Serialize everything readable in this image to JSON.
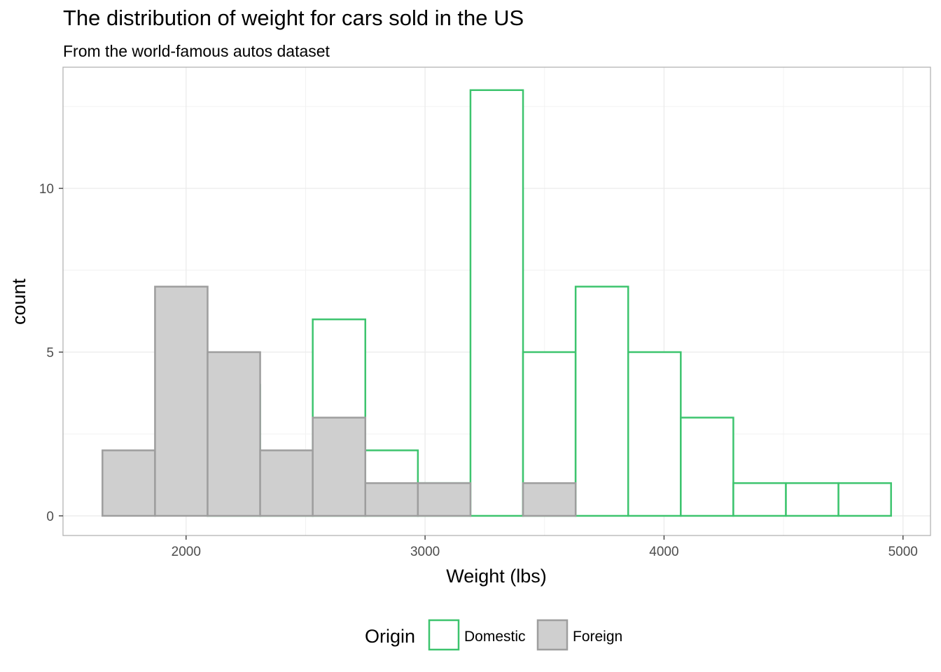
{
  "title": "The distribution of weight for cars sold in the US",
  "subtitle": "From the world-famous autos dataset",
  "chart_data": {
    "type": "bar",
    "subtype": "overlaid-histogram",
    "xlabel": "Weight (lbs)",
    "ylabel": "count",
    "xlim": [
      1485,
      5115
    ],
    "ylim": [
      -0.6,
      13.7
    ],
    "x_ticks": [
      2000,
      3000,
      4000,
      5000
    ],
    "y_ticks": [
      0,
      5,
      10
    ],
    "x_minor_ticks": [
      2500,
      3500,
      4500
    ],
    "y_minor_ticks": [
      2.5,
      7.5,
      12.5
    ],
    "grid": true,
    "legend": {
      "title": "Origin",
      "position": "bottom"
    },
    "bin_width": 220,
    "bins": [
      {
        "x0": 1650,
        "x1": 1870
      },
      {
        "x0": 1870,
        "x1": 2090
      },
      {
        "x0": 2090,
        "x1": 2310
      },
      {
        "x0": 2310,
        "x1": 2530
      },
      {
        "x0": 2530,
        "x1": 2750
      },
      {
        "x0": 2750,
        "x1": 2970
      },
      {
        "x0": 2970,
        "x1": 3190
      },
      {
        "x0": 3190,
        "x1": 3410
      },
      {
        "x0": 3410,
        "x1": 3630
      },
      {
        "x0": 3630,
        "x1": 3850
      },
      {
        "x0": 3850,
        "x1": 4070
      },
      {
        "x0": 4070,
        "x1": 4290
      },
      {
        "x0": 4290,
        "x1": 4510
      },
      {
        "x0": 4510,
        "x1": 4730
      },
      {
        "x0": 4730,
        "x1": 4950
      }
    ],
    "series": [
      {
        "name": "Domestic",
        "fill": "#ffffff",
        "stroke": "#3dc46e",
        "values": [
          0,
          0,
          4,
          1,
          6,
          2,
          1,
          13,
          5,
          7,
          5,
          3,
          1,
          1,
          1
        ]
      },
      {
        "name": "Foreign",
        "fill": "#cfcfcf",
        "stroke": "#9e9e9e",
        "values": [
          2,
          7,
          5,
          2,
          3,
          1,
          1,
          0,
          1,
          0,
          0,
          0,
          0,
          0,
          0
        ]
      }
    ]
  }
}
